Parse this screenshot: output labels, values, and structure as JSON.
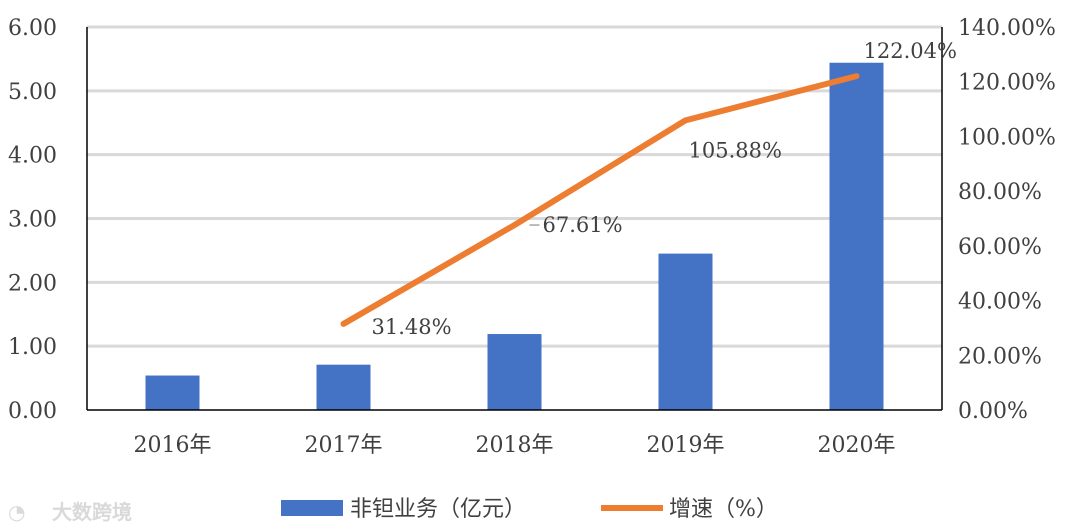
{
  "chart_data": {
    "type": "bar",
    "categories": [
      "2016年",
      "2017年",
      "2018年",
      "2019年",
      "2020年"
    ],
    "series": [
      {
        "name": "非钽业务（亿元）",
        "type": "bar",
        "axis": "left",
        "color": "#4472C4",
        "values": [
          0.54,
          0.71,
          1.19,
          2.45,
          5.44
        ]
      },
      {
        "name": "增速（%）",
        "type": "line",
        "axis": "right",
        "color": "#ED7D31",
        "values": [
          null,
          31.48,
          67.61,
          105.88,
          122.04
        ],
        "data_labels": [
          "",
          "31.48%",
          "67.61%",
          "105.88%",
          "122.04%"
        ]
      }
    ],
    "y_left": {
      "ylim": [
        0,
        6
      ],
      "ticks": [
        "0.00",
        "1.00",
        "2.00",
        "3.00",
        "4.00",
        "5.00",
        "6.00"
      ]
    },
    "y_right": {
      "ylim": [
        0,
        140
      ],
      "ticks": [
        "0.00%",
        "20.00%",
        "40.00%",
        "60.00%",
        "80.00%",
        "100.00%",
        "120.00%",
        "140.00%"
      ]
    },
    "grid": true,
    "legend_position": "bottom"
  },
  "watermark": {
    "text": "大数跨境"
  }
}
